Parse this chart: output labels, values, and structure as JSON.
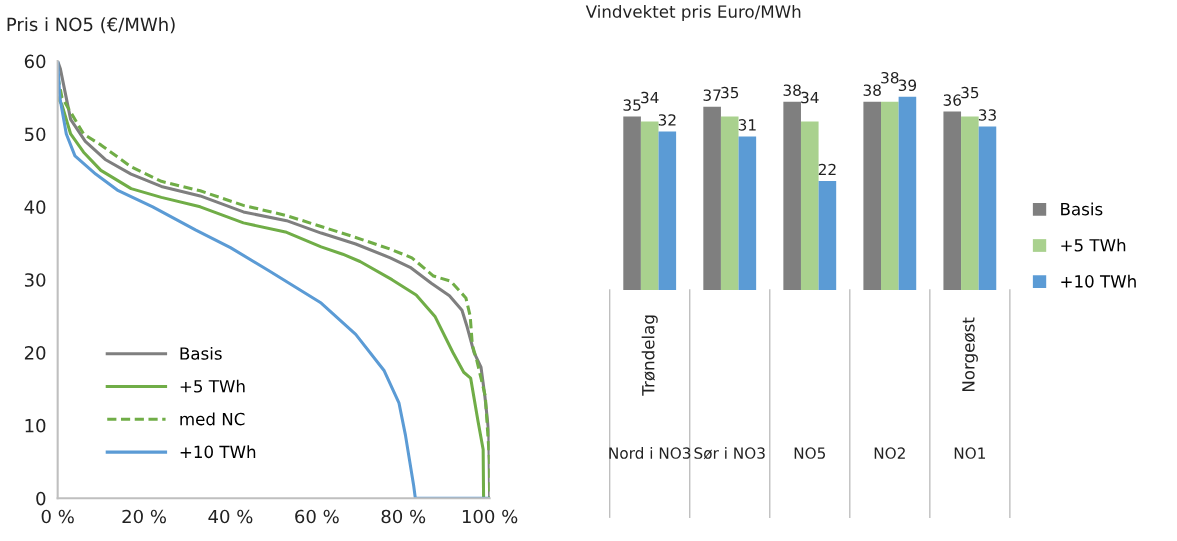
{
  "chart_data": [
    {
      "type": "line",
      "title": "Pris i NO5 (€/MWh)",
      "xlim": [
        0,
        100
      ],
      "ylim": [
        0,
        60
      ],
      "xticks": [
        {
          "value": 0,
          "label": "0 %"
        },
        {
          "value": 20,
          "label": "20 %"
        },
        {
          "value": 40,
          "label": "40 %"
        },
        {
          "value": 60,
          "label": "60 %"
        },
        {
          "value": 80,
          "label": "80 %"
        },
        {
          "value": 100,
          "label": "100 %"
        }
      ],
      "yticks": [
        0,
        10,
        20,
        30,
        40,
        50,
        60
      ],
      "grid": false,
      "legend": "bottom left",
      "series": [
        {
          "name": "Basis",
          "color": "#7f7f7f",
          "line_style": "solid",
          "x": [
            0,
            0.6,
            3,
            6.4,
            11,
            17,
            24,
            33,
            43,
            53,
            61,
            69,
            77,
            81.6,
            86.5,
            90.7,
            93.6,
            94.8,
            96.4,
            98,
            98.9,
            99.8,
            100
          ],
          "values": [
            60,
            59,
            52,
            49,
            46.5,
            44.5,
            42.8,
            41.5,
            39.3,
            38.1,
            36.4,
            34.9,
            33,
            31.7,
            29.5,
            27.8,
            25.8,
            23.5,
            20,
            18,
            14,
            9,
            0
          ]
        },
        {
          "name": "+5 TWh",
          "color": "#70ad47",
          "line_style": "solid",
          "x": [
            0,
            1,
            3,
            6,
            10,
            17,
            24,
            33,
            43,
            53,
            61,
            66,
            70,
            77.4,
            83,
            87.4,
            91.5,
            94,
            95.6,
            97.3,
            98.5,
            98.6
          ],
          "values": [
            55,
            54,
            50,
            47.5,
            45,
            42.5,
            41.3,
            40,
            37.8,
            36.5,
            34.5,
            33.5,
            32.5,
            30,
            27.9,
            24.9,
            20,
            17.3,
            16.5,
            10.6,
            6.7,
            0
          ]
        },
        {
          "name": "med NC",
          "color": "#70ad47",
          "line_style": "dashed",
          "x": [
            0,
            1,
            3,
            6,
            10,
            17,
            24,
            33,
            43,
            53,
            61,
            69,
            77,
            82,
            87,
            91,
            94.5,
            95.5,
            96,
            97,
            99,
            100,
            100.0
          ],
          "values": [
            58,
            55,
            53,
            50,
            48.5,
            45.5,
            43.5,
            42.2,
            40.2,
            38.8,
            37.3,
            35.8,
            34.2,
            33,
            30.5,
            29.8,
            27.5,
            25,
            21,
            19,
            14,
            5,
            0
          ]
        },
        {
          "name": "+10 TWh",
          "color": "#5b9bd5",
          "line_style": "solid",
          "x": [
            0,
            0.5,
            2,
            4,
            8.8,
            13.8,
            22,
            32,
            40,
            49,
            61,
            69,
            75.6,
            79,
            80.5,
            82.4,
            82.8,
            100
          ],
          "values": [
            60,
            55,
            50,
            47,
            44.5,
            42.3,
            40,
            36.8,
            34.4,
            31.2,
            26.8,
            22.5,
            17.5,
            13.1,
            8.7,
            1.8,
            0,
            0
          ]
        }
      ]
    },
    {
      "type": "bar",
      "title": "Vindvektet pris Euro/MWh",
      "categories": [
        "Trøndelag",
        null,
        null,
        null,
        "Norgeøst"
      ],
      "data_labels": true,
      "legend": "right",
      "series": [
        {
          "name": "Basis",
          "color": "#7f7f7f",
          "values": [
            35,
            37,
            38,
            38,
            36
          ]
        },
        {
          "name": "+5 TWh",
          "color": "#a9d18e",
          "values": [
            34,
            35,
            34,
            38,
            35
          ]
        },
        {
          "name": "+10 TWh",
          "color": "#5b9bd5",
          "values": [
            32,
            31,
            22,
            39,
            33
          ]
        }
      ],
      "annotations": [
        "Nord i NO3",
        "Sør i NO3",
        "NO5",
        "NO2",
        "NO1"
      ]
    }
  ]
}
